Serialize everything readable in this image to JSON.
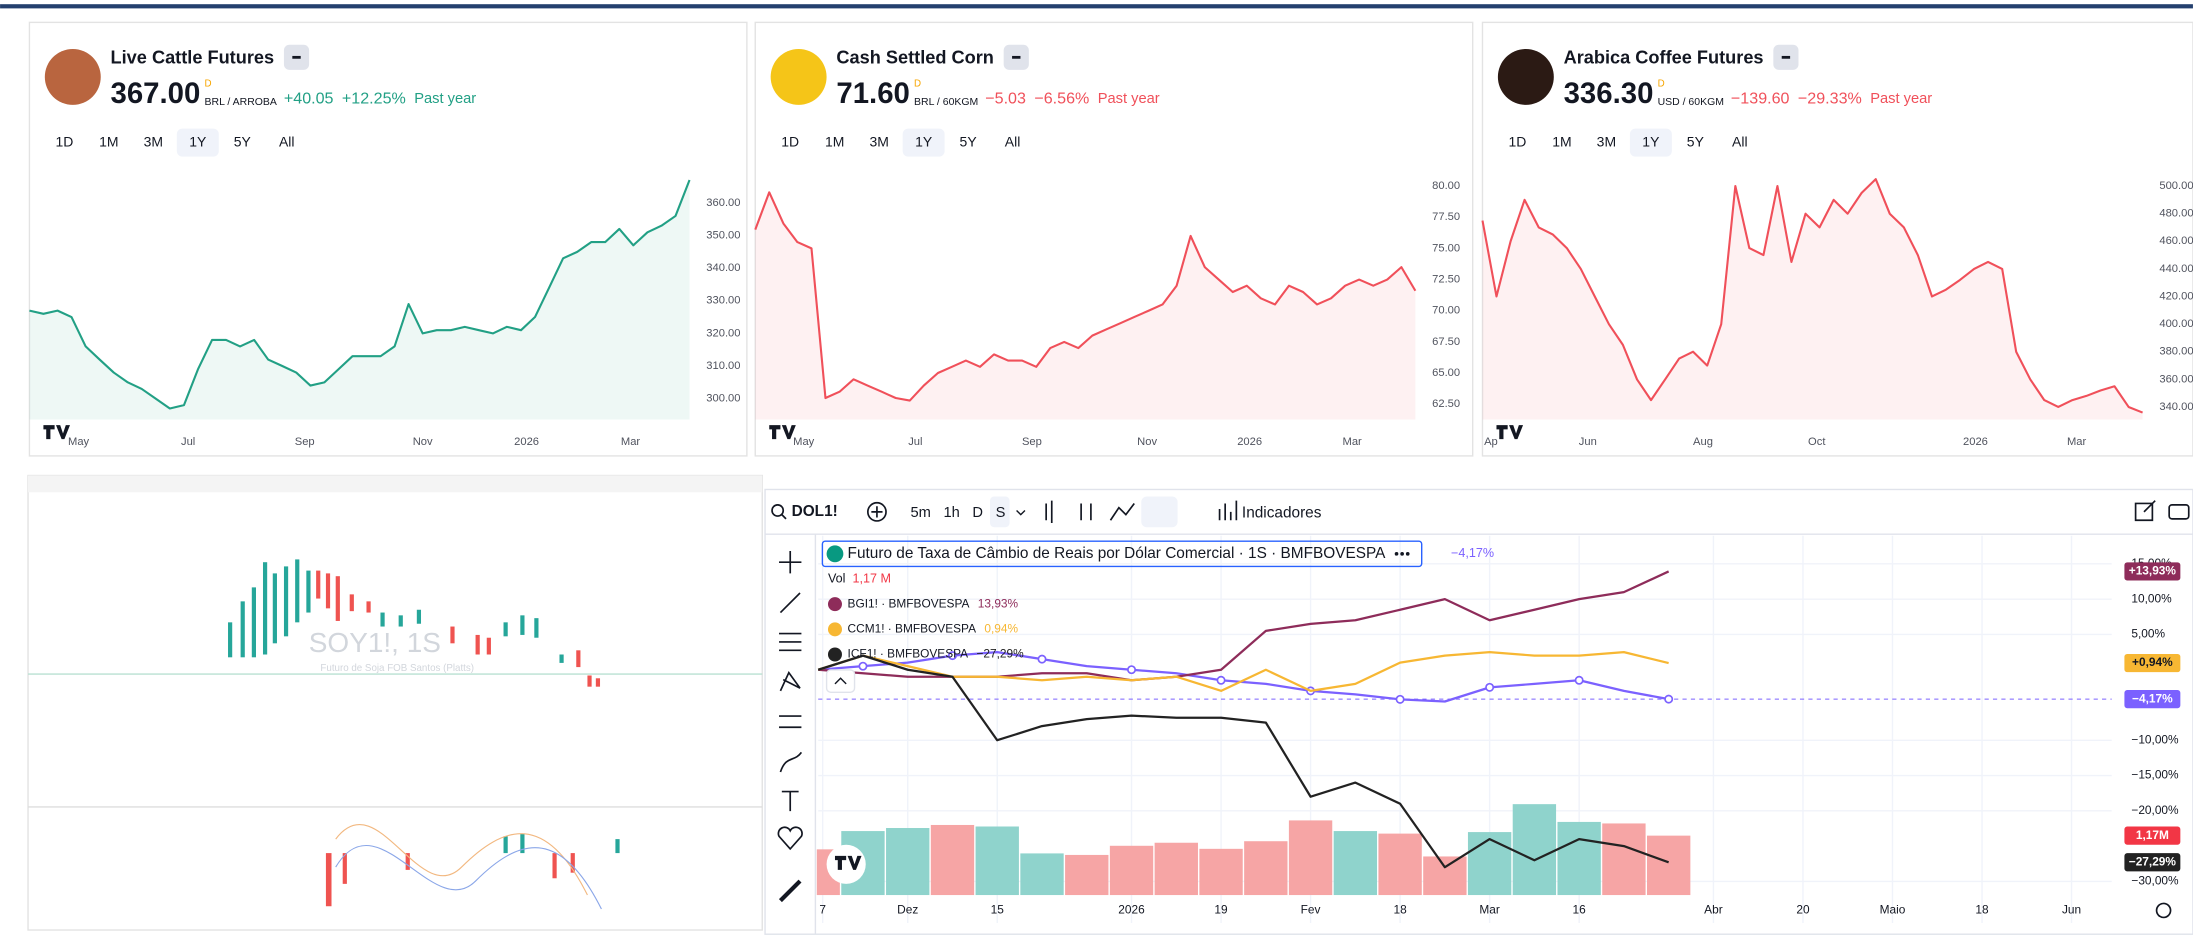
{
  "top_widgets": [
    {
      "title": "Live Cattle Futures",
      "price": "367.00",
      "price_flag": "D",
      "unit": "BRL / ARROBA",
      "change": "+40.05",
      "change_pct": "+12.25%",
      "period": "Past year",
      "icon_color": "#b9653f",
      "color": "#22a085",
      "change_color": "#22a085",
      "values": [
        327,
        326,
        327,
        325,
        316,
        312,
        308,
        305,
        303,
        300,
        297,
        298,
        309,
        318,
        318,
        316,
        318,
        312,
        310,
        308,
        304,
        305,
        309,
        313,
        313,
        313,
        316,
        329,
        320,
        321,
        321,
        322,
        321,
        320,
        322,
        321,
        325,
        334,
        343,
        345,
        348,
        348,
        352,
        347,
        351,
        353,
        356,
        367
      ],
      "xlim": [
        0,
        47
      ],
      "xticks": [
        {
          "value": 3.5,
          "label": "May"
        },
        {
          "value": 11.3,
          "label": "Jul"
        },
        {
          "value": 19.6,
          "label": "Sep"
        },
        {
          "value": 28,
          "label": "Nov"
        },
        {
          "value": 35.4,
          "label": "2026"
        },
        {
          "value": 42.8,
          "label": "Mar"
        }
      ],
      "ylim": [
        293.6,
        368.6
      ],
      "yticks": [
        {
          "value": 300,
          "label": "300.00"
        },
        {
          "value": 310,
          "label": "310.00"
        },
        {
          "value": 320,
          "label": "320.00"
        },
        {
          "value": 330,
          "label": "330.00"
        },
        {
          "value": 340,
          "label": "340.00"
        },
        {
          "value": 350,
          "label": "350.00"
        },
        {
          "value": 360,
          "label": "360.00"
        }
      ]
    },
    {
      "title": "Cash Settled Corn",
      "price": "71.60",
      "price_flag": "D",
      "unit": "BRL / 60KGM",
      "change": "−5.03",
      "change_pct": "−6.56%",
      "period": "Past year",
      "icon_color": "#f5c518",
      "color": "#f0505a",
      "change_color": "#f0505a",
      "values": [
        76.5,
        79.5,
        77,
        75.5,
        75,
        63,
        63.5,
        64.5,
        64,
        63.5,
        63,
        62.8,
        64,
        65,
        65.5,
        66,
        65.5,
        66.5,
        66,
        66,
        65.5,
        67,
        67.5,
        67,
        68,
        68.5,
        69,
        69.5,
        70,
        70.5,
        72,
        76,
        73.5,
        72.5,
        71.5,
        72,
        71,
        70.5,
        72,
        71.5,
        70.5,
        71,
        72,
        72.5,
        72,
        72.5,
        73.5,
        71.6
      ],
      "xlim": [
        0,
        47
      ],
      "xticks": [
        {
          "value": 3.45,
          "label": "May"
        },
        {
          "value": 11.4,
          "label": "Jul"
        },
        {
          "value": 19.7,
          "label": "Sep"
        },
        {
          "value": 27.9,
          "label": "Nov"
        },
        {
          "value": 35.2,
          "label": "2026"
        },
        {
          "value": 42.5,
          "label": "Mar"
        }
      ],
      "ylim": [
        61.27,
        80.9
      ],
      "yticks": [
        {
          "value": 62.5,
          "label": "62.50"
        },
        {
          "value": 65,
          "label": "65.00"
        },
        {
          "value": 67.5,
          "label": "67.50"
        },
        {
          "value": 70,
          "label": "70.00"
        },
        {
          "value": 72.5,
          "label": "72.50"
        },
        {
          "value": 75,
          "label": "75.00"
        },
        {
          "value": 77.5,
          "label": "77.50"
        },
        {
          "value": 80,
          "label": "80.00"
        }
      ]
    },
    {
      "title": "Arabica Coffee Futures",
      "price": "336.30",
      "price_flag": "D",
      "unit": "USD / 60KGM",
      "change": "−139.60",
      "change_pct": "−29.33%",
      "period": "Past year",
      "icon_color": "#2b1a14",
      "color": "#f0505a",
      "change_color": "#f0505a",
      "values": [
        475,
        420,
        460,
        490,
        470,
        465,
        455,
        440,
        420,
        400,
        385,
        360,
        345,
        360,
        375,
        380,
        370,
        400,
        500,
        455,
        450,
        500,
        445,
        480,
        470,
        490,
        480,
        495,
        505,
        480,
        470,
        450,
        420,
        425,
        432,
        440,
        445,
        440,
        380,
        360,
        345,
        340,
        345,
        348,
        352,
        355,
        340,
        336
      ],
      "xlim": [
        0,
        47
      ],
      "xticks": [
        {
          "value": 0.6,
          "label": "Ap"
        },
        {
          "value": 7.5,
          "label": "Jun"
        },
        {
          "value": 15.7,
          "label": "Aug"
        },
        {
          "value": 23.8,
          "label": "Oct"
        },
        {
          "value": 35.1,
          "label": "2026"
        },
        {
          "value": 42.3,
          "label": "Mar"
        }
      ],
      "ylim": [
        330.9,
        508.1
      ],
      "yticks": [
        {
          "value": 340,
          "label": "340.00"
        },
        {
          "value": 360,
          "label": "360.00"
        },
        {
          "value": 380,
          "label": "380.00"
        },
        {
          "value": 400,
          "label": "400.00"
        },
        {
          "value": 420,
          "label": "420.00"
        },
        {
          "value": 440,
          "label": "440.00"
        },
        {
          "value": 460,
          "label": "460.00"
        },
        {
          "value": 480,
          "label": "480.00"
        },
        {
          "value": 500,
          "label": "500.00"
        }
      ]
    }
  ],
  "ranges": [
    "1D",
    "1M",
    "3M",
    "1Y",
    "5Y",
    "All"
  ],
  "active_range_index": 3,
  "thumbnail": {
    "watermark": "SOY1!, 1S",
    "subtitle": "Futuro de Soja FOB Santos (Platts)"
  },
  "tv_chart": {
    "symbol": "DOL1!",
    "intervals": [
      "5m",
      "1h",
      "D",
      "S"
    ],
    "active_interval_index": 3,
    "indicators": "Indicadores",
    "volume": {
      "name": "Vol",
      "label": "1,17 M",
      "axis_label": "1,17M",
      "values": [
        0.9,
        1.26,
        1.32,
        1.38,
        1.35,
        0.82,
        0.79,
        0.97,
        1.03,
        0.91,
        1.06,
        1.47,
        1.26,
        1.21,
        0.76,
        1.24,
        1.79,
        1.44,
        1.41,
        1.17
      ],
      "colors": [
        "#f6a5a5",
        "#8fd3cc",
        "#8fd3cc",
        "#f6a5a5",
        "#8fd3cc",
        "#8fd3cc",
        "#f6a5a5",
        "#f6a5a5",
        "#f6a5a5",
        "#f6a5a5",
        "#f6a5a5",
        "#f6a5a5",
        "#8fd3cc",
        "#f6a5a5",
        "#f6a5a5",
        "#8fd3cc",
        "#8fd3cc",
        "#8fd3cc",
        "#f6a5a5",
        "#f6a5a5"
      ]
    },
    "series": [
      {
        "name": "Futuro de Taxa de Câmbio de Reais por Dólar Comercial · 1S · BMFBOVESPA",
        "legend_value": "−4,17%",
        "axis_label": "−4,17%",
        "color": "#7b61ff",
        "markers": true,
        "values": [
          0,
          0.5,
          1,
          2,
          2.5,
          1.5,
          0.5,
          0,
          -0.5,
          -1.5,
          -2,
          -3,
          -3.5,
          -4.2,
          -4.5,
          -2.5,
          -2,
          -1.5,
          -3,
          -4.17
        ]
      },
      {
        "name": "BGI1! · BMFBOVESPA",
        "legend_value": "13,93%",
        "axis_label": "+13,93%",
        "color": "#8e2c5a",
        "values": [
          0,
          -0.5,
          -1,
          -1,
          -1,
          -0.5,
          -0.5,
          -1.5,
          -1,
          0,
          5.5,
          6.5,
          7,
          8.5,
          10,
          7,
          8.5,
          10,
          11,
          13.93
        ]
      },
      {
        "name": "CCM1! · BMFBOVESPA",
        "legend_value": "0,94%",
        "axis_label": "+0,94%",
        "color": "#f7b733",
        "values": [
          0,
          2,
          0.5,
          -1,
          -1,
          -1.5,
          -1,
          -1.5,
          -1,
          -3,
          0,
          -3,
          -2,
          1,
          2,
          2.5,
          2,
          2,
          2.5,
          0.94
        ]
      },
      {
        "name": "ICF1! · BMFBOVESPA",
        "legend_value": "−27,29%",
        "axis_label": "−27,29%",
        "color": "#222222",
        "values": [
          0,
          2,
          0,
          -1,
          -10,
          -8,
          -7,
          -6.5,
          -6.8,
          -6.8,
          -7.5,
          -18,
          -16,
          -19,
          -28,
          -24,
          -27,
          -24,
          -25,
          -27.29
        ]
      }
    ],
    "xlim": [
      0,
      28.9
    ],
    "xticks": [
      {
        "value": 0.1,
        "label": "7"
      },
      {
        "value": 2,
        "label": "Dez"
      },
      {
        "value": 4,
        "label": "15"
      },
      {
        "value": 7,
        "label": "2026"
      },
      {
        "value": 9,
        "label": "19"
      },
      {
        "value": 11,
        "label": "Fev"
      },
      {
        "value": 13,
        "label": "18"
      },
      {
        "value": 15,
        "label": "Mar"
      },
      {
        "value": 17,
        "label": "16"
      },
      {
        "value": 20,
        "label": "Abr"
      },
      {
        "value": 22,
        "label": "20"
      },
      {
        "value": 24,
        "label": "Maio"
      },
      {
        "value": 26,
        "label": "18"
      },
      {
        "value": 28,
        "label": "Jun"
      }
    ],
    "ylim": [
      -35.9,
      19
    ],
    "yticks": [
      {
        "value": 15,
        "label": "15,00%"
      },
      {
        "value": 10,
        "label": "10,00%"
      },
      {
        "value": 5,
        "label": "5,00%"
      },
      {
        "value": -10,
        "label": "−10,00%"
      },
      {
        "value": -15,
        "label": "−15,00%"
      },
      {
        "value": -20,
        "label": "−20,00%"
      },
      {
        "value": -30,
        "label": "−30,00%"
      }
    ]
  }
}
